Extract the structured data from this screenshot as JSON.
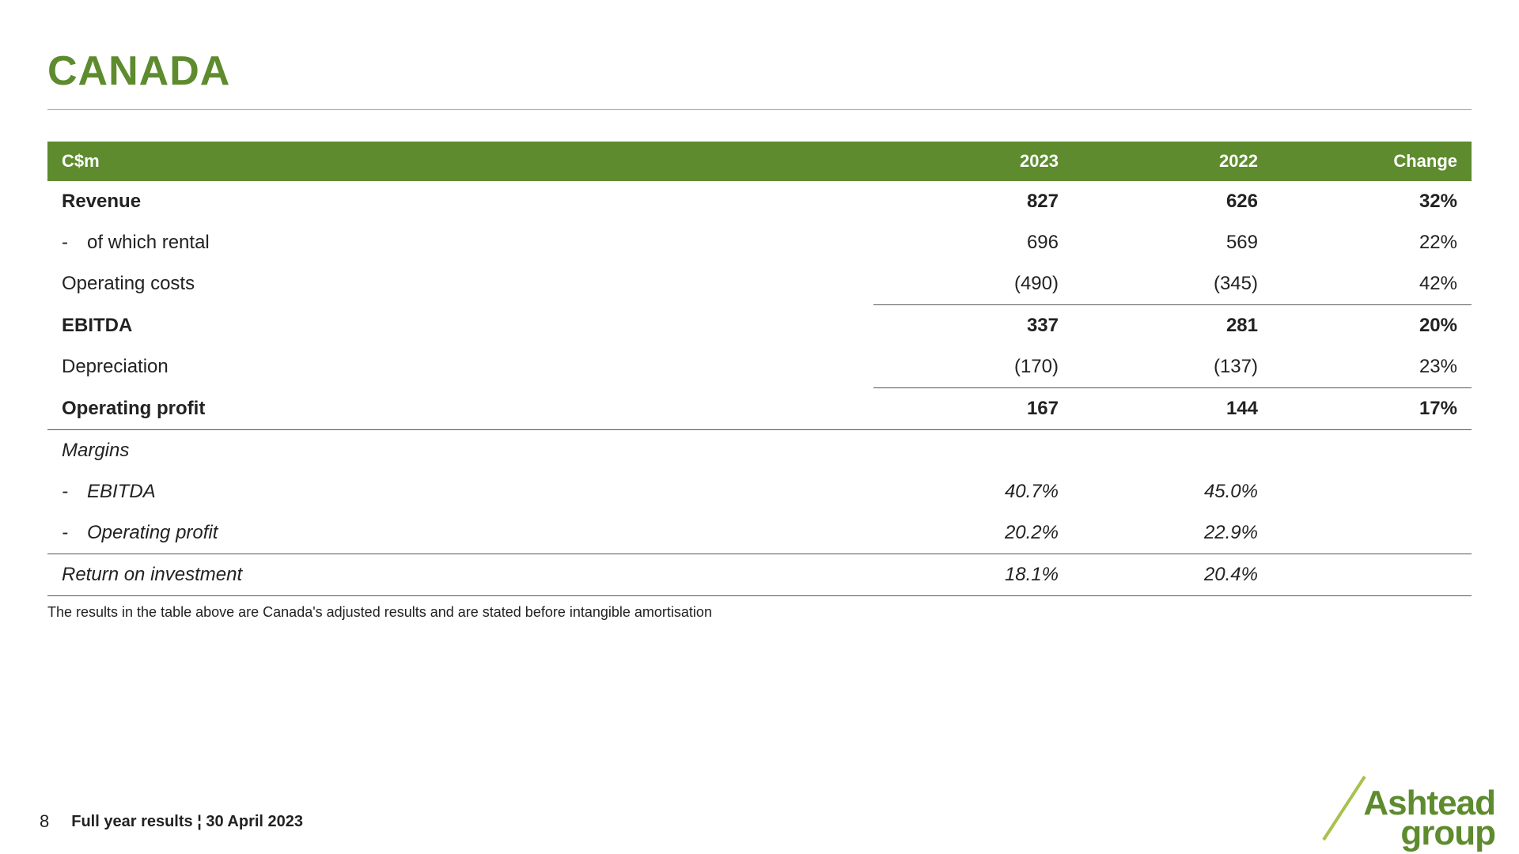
{
  "title": "CANADA",
  "colors": {
    "brand_green": "#5d8b2e",
    "header_bg": "#5d8b2e",
    "header_text": "#ffffff",
    "text": "#222222",
    "rule": "#555555",
    "background": "#ffffff"
  },
  "table": {
    "columns": [
      "C$m",
      "2023",
      "2022",
      "Change"
    ],
    "rows": [
      {
        "label": "Revenue",
        "y2023": "827",
        "y2022": "626",
        "change": "32%",
        "bold": true
      },
      {
        "label": "of which rental",
        "y2023": "696",
        "y2022": "569",
        "change": "22%",
        "indent": true
      },
      {
        "label": "Operating costs",
        "y2023": "(490)",
        "y2022": "(345)",
        "change": "42%"
      },
      {
        "label": "EBITDA",
        "y2023": "337",
        "y2022": "281",
        "change": "20%",
        "bold": true,
        "sum_top": true
      },
      {
        "label": "Depreciation",
        "y2023": "(170)",
        "y2022": "(137)",
        "change": "23%"
      },
      {
        "label": "Operating profit",
        "y2023": "167",
        "y2022": "144",
        "change": "17%",
        "bold": true,
        "sum_top": true
      },
      {
        "label": "Margins",
        "y2023": "",
        "y2022": "",
        "change": "",
        "italic": true,
        "section_top": true,
        "tight": true
      },
      {
        "label": "EBITDA",
        "y2023": "40.7%",
        "y2022": "45.0%",
        "change": "",
        "italic": true,
        "indent": true,
        "tight": true
      },
      {
        "label": "Operating profit",
        "y2023": "20.2%",
        "y2022": "22.9%",
        "change": "",
        "italic": true,
        "indent": true,
        "tight": true
      },
      {
        "label": "Return on investment",
        "y2023": "18.1%",
        "y2022": "20.4%",
        "change": "",
        "italic": true,
        "section_top": true,
        "last_row": true
      }
    ]
  },
  "footnote": "The results in the table above are Canada's adjusted results and are stated before intangible amortisation",
  "footer": {
    "page": "8",
    "text": "Full year results ¦ 30 April 2023"
  },
  "logo": {
    "line1": "Ashtead",
    "line2": "group"
  }
}
